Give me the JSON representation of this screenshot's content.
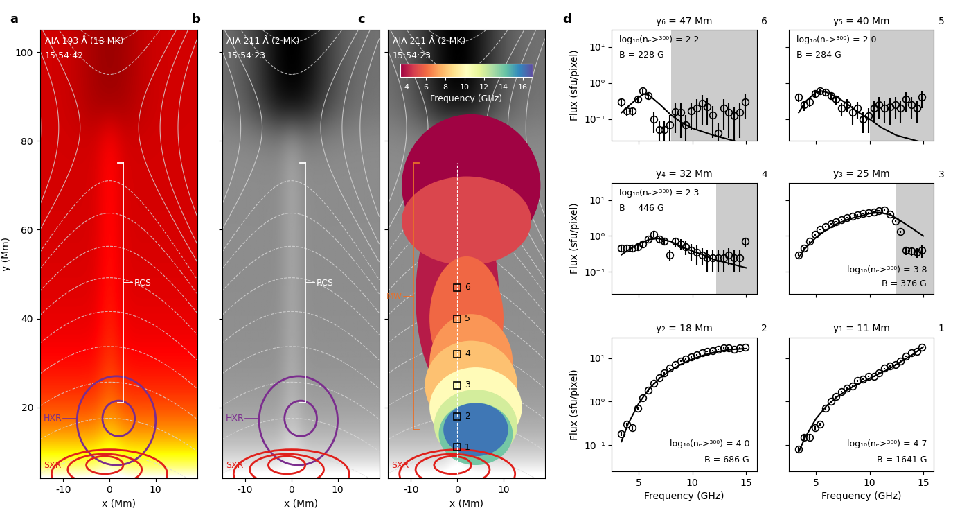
{
  "chart_data": [
    {
      "type": "image",
      "panel": "a",
      "channel": "AIA 193 Å (18 MK)",
      "time": "15:54:42",
      "color": "red",
      "xlabel": "x (Mm)",
      "ylabel": "y (Mm)",
      "xlim": [
        -15,
        19
      ],
      "ylim": [
        4,
        105
      ],
      "xticks": [
        -10,
        0,
        10
      ],
      "yticks": [
        20,
        40,
        60,
        80,
        100
      ],
      "brackets": [
        {
          "text": "RCS",
          "x": 3,
          "y": [
            21,
            75
          ],
          "color": "white"
        }
      ],
      "contours": [
        {
          "text": "HXR",
          "color": "#7b2d8e",
          "ellipses": [
            {
              "x": 2,
              "y": 17.5,
              "width": 7,
              "height": 8
            },
            {
              "x": 1.5,
              "y": 17,
              "width": 17,
              "height": 20
            }
          ]
        },
        {
          "text": "SXR",
          "color": "#e0201b",
          "ellipses": [
            {
              "x": -1,
              "y": 7,
              "width": 8,
              "height": 4
            },
            {
              "x": -1,
              "y": 6,
              "width": 16,
              "height": 7
            },
            {
              "x": 0,
              "y": 5,
              "width": 25,
              "height": 11
            }
          ]
        }
      ]
    },
    {
      "type": "image",
      "panel": "b",
      "channel": "AIA 211 Å (2 MK)",
      "time": "15:54:23",
      "color": "gray",
      "xlabel": "x (Mm)",
      "xlim": [
        -15,
        19
      ],
      "ylim": [
        4,
        105
      ],
      "tick_labels": "x",
      "xticks": [
        -10,
        0,
        10
      ],
      "yticks": [
        20,
        40,
        60,
        80,
        100
      ],
      "brackets": [
        {
          "text": "RCS",
          "x": 3,
          "y": [
            21,
            75
          ],
          "color": "white"
        }
      ],
      "contours": [
        {
          "text": "HXR",
          "color": "#7b2d8e",
          "ellipses": [
            {
              "x": 2,
              "y": 17.5,
              "width": 7,
              "height": 8
            },
            {
              "x": 1.5,
              "y": 17,
              "width": 17,
              "height": 20
            }
          ]
        },
        {
          "text": "SXR",
          "color": "#e0201b",
          "ellipses": [
            {
              "x": -1,
              "y": 7,
              "width": 8,
              "height": 4
            },
            {
              "x": -1,
              "y": 6,
              "width": 16,
              "height": 7
            },
            {
              "x": 0,
              "y": 5,
              "width": 25,
              "height": 11
            }
          ]
        }
      ]
    },
    {
      "type": "image",
      "panel": "c",
      "channel": "AIA 211 Å (2 MK)",
      "time": "15:54:23",
      "color": "gray",
      "xlabel": "x (Mm)",
      "xlim": [
        -15,
        19
      ],
      "ylim": [
        4,
        105
      ],
      "tick_labels": "x",
      "xticks": [
        -10,
        0,
        10
      ],
      "yticks": [
        20,
        40,
        60,
        80,
        100
      ],
      "brackets": [
        {
          "text": "MW",
          "x": -9.5,
          "y": [
            15,
            75
          ],
          "color": "#e8702a"
        }
      ],
      "contours": [
        {
          "text": "SXR",
          "color": "#e0201b",
          "ellipses": [
            {
              "x": -1,
              "y": 7,
              "width": 8,
              "height": 4
            },
            {
              "x": -1,
              "y": 6,
              "width": 16,
              "height": 7
            },
            {
              "x": 0,
              "y": 5,
              "width": 25,
              "height": 11
            }
          ]
        }
      ],
      "mw_sources": [
        {
          "frequency": 3.5,
          "x": 3,
          "y": 70,
          "width": 30,
          "height": 32
        },
        {
          "frequency": 4,
          "x": 0,
          "y": 45,
          "width": 18,
          "height": 45
        },
        {
          "frequency": 5,
          "x": 2,
          "y": 62,
          "width": 28,
          "height": 20
        },
        {
          "frequency": 6,
          "x": 2,
          "y": 40,
          "width": 16,
          "height": 28
        },
        {
          "frequency": 7,
          "x": 3,
          "y": 30,
          "width": 18,
          "height": 22
        },
        {
          "frequency": 8,
          "x": 3,
          "y": 25,
          "width": 20,
          "height": 20
        },
        {
          "frequency": 10,
          "x": 4,
          "y": 20,
          "width": 20,
          "height": 18
        },
        {
          "frequency": 12,
          "x": 4,
          "y": 16,
          "width": 18,
          "height": 16
        },
        {
          "frequency": 14,
          "x": 4,
          "y": 14,
          "width": 16,
          "height": 14
        },
        {
          "frequency": 16,
          "x": 4,
          "y": 15,
          "width": 14,
          "height": 12
        }
      ],
      "colorbar": {
        "label": "Frequency (GHz)",
        "lim": [
          3.4,
          17
        ],
        "ticks": [
          4,
          6,
          8,
          10,
          12,
          14,
          16
        ]
      },
      "marker_x": 0
    },
    {
      "type": "scatter",
      "title": "y₆ = 47 Mm",
      "y": 47,
      "label": "6",
      "ylabel": "Flux (sfu/pixel)",
      "tick_labels": "y",
      "log": "y",
      "xlim": [
        2.5,
        16
      ],
      "ylim": [
        0.025,
        30
      ],
      "xticks": [
        5,
        10,
        15
      ],
      "yticks": [
        {
          "value": 0.1,
          "label": "10⁻¹"
        },
        {
          "value": 1,
          "label": "10⁰"
        },
        {
          "value": 10,
          "label": "10¹"
        }
      ],
      "x": [
        3.4,
        3.9,
        4.4,
        4.9,
        5.4,
        5.9,
        6.4,
        6.9,
        7.4,
        7.9,
        8.4,
        8.9,
        9.4,
        9.9,
        10.4,
        10.9,
        11.4,
        11.9,
        12.4,
        12.9,
        13.4,
        13.9,
        14.4,
        14.9
      ],
      "values": [
        0.3,
        0.17,
        0.17,
        0.35,
        0.6,
        0.45,
        0.1,
        0.05,
        0.05,
        0.07,
        0.16,
        0.15,
        0.07,
        0.17,
        0.2,
        0.27,
        0.22,
        0.13,
        0.04,
        0.2,
        0.15,
        0.12,
        0.15,
        0.3
      ],
      "errors": [
        0.08,
        0.05,
        0.05,
        0.08,
        0.1,
        0.1,
        0.06,
        0.04,
        0.04,
        0.06,
        0.12,
        0.12,
        0.06,
        0.12,
        0.15,
        0.2,
        0.15,
        0.1,
        0.035,
        0.15,
        0.12,
        0.1,
        0.12,
        0.2
      ],
      "fit": {
        "x": [
          3.4,
          4,
          5,
          5.5,
          6,
          7,
          8,
          9,
          10,
          12,
          15
        ],
        "values": [
          0.15,
          0.22,
          0.4,
          0.5,
          0.45,
          0.25,
          0.13,
          0.08,
          0.055,
          0.035,
          0.02
        ]
      },
      "shaded_from": 8,
      "annotations": [
        "log₁₀(nₑ>³⁰⁰) = 2.2",
        "B = 228 G"
      ]
    },
    {
      "type": "scatter",
      "title": "y₅ = 40 Mm",
      "y": 40,
      "label": "5",
      "tick_labels": false,
      "log": "y",
      "xlim": [
        2.5,
        16
      ],
      "ylim": [
        0.025,
        30
      ],
      "xticks": [
        5,
        10,
        15
      ],
      "yticks": [
        {
          "value": 0.1,
          "label": "10⁻¹"
        },
        {
          "value": 1,
          "label": "10⁰"
        },
        {
          "value": 10,
          "label": "10¹"
        }
      ],
      "x": [
        3.4,
        3.9,
        4.4,
        4.9,
        5.4,
        5.9,
        6.4,
        6.9,
        7.4,
        7.9,
        8.4,
        8.9,
        9.4,
        9.9,
        10.4,
        10.9,
        11.4,
        11.9,
        12.4,
        12.9,
        13.4,
        13.9,
        14.4,
        14.9
      ],
      "values": [
        0.4,
        0.25,
        0.3,
        0.5,
        0.6,
        0.55,
        0.45,
        0.35,
        0.2,
        0.25,
        0.15,
        0.2,
        0.1,
        0.12,
        0.2,
        0.25,
        0.2,
        0.22,
        0.25,
        0.2,
        0.35,
        0.25,
        0.2,
        0.4
      ],
      "errors": [
        0.1,
        0.08,
        0.08,
        0.1,
        0.1,
        0.1,
        0.1,
        0.1,
        0.08,
        0.1,
        0.08,
        0.1,
        0.06,
        0.08,
        0.12,
        0.15,
        0.12,
        0.15,
        0.15,
        0.12,
        0.2,
        0.15,
        0.12,
        0.2
      ],
      "fit": {
        "x": [
          3.4,
          4,
          5,
          5.5,
          6,
          7,
          8,
          9,
          10,
          11,
          12.5,
          15
        ],
        "values": [
          0.15,
          0.3,
          0.55,
          0.6,
          0.55,
          0.4,
          0.25,
          0.15,
          0.1,
          0.06,
          0.035,
          0.022
        ]
      },
      "shaded_from": 10,
      "annotations": [
        "log₁₀(nₑ>³⁰⁰) = 2.0",
        "B = 284 G"
      ]
    },
    {
      "type": "scatter",
      "title": "y₄ = 32 Mm",
      "y": 32,
      "label": "4",
      "ylabel": "Flux (sfu/pixel)",
      "tick_labels": "y",
      "log": "y",
      "xlim": [
        2.5,
        16
      ],
      "ylim": [
        0.025,
        30
      ],
      "xticks": [
        5,
        10,
        15
      ],
      "yticks": [
        {
          "value": 0.1,
          "label": "10⁻¹"
        },
        {
          "value": 1,
          "label": "10⁰"
        },
        {
          "value": 10,
          "label": "10¹"
        }
      ],
      "x": [
        3.4,
        3.9,
        4.4,
        4.9,
        5.4,
        5.9,
        6.4,
        6.9,
        7.4,
        7.9,
        8.4,
        8.9,
        9.4,
        9.9,
        10.4,
        10.9,
        11.4,
        11.9,
        12.4,
        12.9,
        13.4,
        13.9,
        14.4,
        14.9
      ],
      "values": [
        0.45,
        0.45,
        0.45,
        0.5,
        0.6,
        0.8,
        1.1,
        0.8,
        0.7,
        0.3,
        0.7,
        0.6,
        0.5,
        0.4,
        0.35,
        0.3,
        0.25,
        0.25,
        0.25,
        0.25,
        0.3,
        0.25,
        0.25,
        0.7
      ],
      "errors": [
        0.1,
        0.1,
        0.1,
        0.1,
        0.1,
        0.12,
        0.15,
        0.15,
        0.15,
        0.1,
        0.2,
        0.2,
        0.2,
        0.2,
        0.2,
        0.15,
        0.15,
        0.15,
        0.15,
        0.15,
        0.15,
        0.15,
        0.15,
        0.2
      ],
      "fit": {
        "x": [
          3.4,
          4,
          5,
          6,
          6.8,
          8,
          9,
          10,
          11,
          12,
          13.5,
          15
        ],
        "values": [
          0.3,
          0.4,
          0.6,
          0.8,
          0.85,
          0.7,
          0.5,
          0.38,
          0.3,
          0.22,
          0.17,
          0.13
        ]
      },
      "shaded_from": 12.2,
      "annotations": [
        "log₁₀(nₑ>³⁰⁰) = 2.3",
        "B = 446 G"
      ]
    },
    {
      "type": "scatter",
      "title": "y₃ = 25 Mm",
      "y": 25,
      "label": "3",
      "tick_labels": false,
      "log": "y",
      "xlim": [
        2.5,
        16
      ],
      "ylim": [
        0.025,
        30
      ],
      "xticks": [
        5,
        10,
        15
      ],
      "yticks": [
        {
          "value": 0.1,
          "label": "10⁻¹"
        },
        {
          "value": 1,
          "label": "10⁰"
        },
        {
          "value": 10,
          "label": "10¹"
        }
      ],
      "x": [
        3.4,
        3.9,
        4.4,
        4.9,
        5.4,
        5.9,
        6.4,
        6.9,
        7.4,
        7.9,
        8.4,
        8.9,
        9.4,
        9.9,
        10.4,
        10.9,
        11.4,
        11.9,
        12.4,
        12.9,
        13.4,
        13.9,
        14.4,
        14.9
      ],
      "values": [
        0.3,
        0.45,
        0.7,
        1.1,
        1.5,
        1.8,
        2.2,
        2.5,
        2.8,
        3.2,
        3.6,
        3.9,
        4.2,
        4.5,
        4.7,
        5.0,
        5.2,
        4.0,
        2.6,
        1.3,
        0.4,
        0.38,
        0.35,
        0.4
      ],
      "errors": [
        0.03,
        0.04,
        0.05,
        0.07,
        0.08,
        0.09,
        0.1,
        0.12,
        0.13,
        0.15,
        0.15,
        0.17,
        0.18,
        0.2,
        0.2,
        0.2,
        0.2,
        0.2,
        0.15,
        0.1,
        0.1,
        0.1,
        0.1,
        0.15
      ],
      "fit": {
        "x": [
          3.4,
          4,
          5,
          6,
          7,
          8,
          9,
          10,
          11,
          12,
          13,
          14,
          15
        ],
        "values": [
          0.25,
          0.45,
          0.9,
          1.5,
          2.2,
          2.9,
          3.5,
          4.2,
          4.5,
          3.8,
          2.5,
          1.6,
          1.0
        ]
      },
      "shaded_from": 12.5,
      "annotations": [
        "log₁₀(nₑ>³⁰⁰) = 3.8",
        "B = 376 G"
      ]
    },
    {
      "type": "scatter",
      "title": "y₂ = 18 Mm",
      "y": 18,
      "label": "2",
      "ylabel": "Flux (sfu/pixel)",
      "xlabel": "Frequency (GHz)",
      "log": "y",
      "xlim": [
        2.5,
        16
      ],
      "ylim": [
        0.025,
        30
      ],
      "xticks": [
        5,
        10,
        15
      ],
      "yticks": [
        {
          "value": 0.1,
          "label": "10⁻¹"
        },
        {
          "value": 1,
          "label": "10⁰"
        },
        {
          "value": 10,
          "label": "10¹"
        }
      ],
      "x": [
        3.4,
        3.9,
        4.4,
        4.9,
        5.4,
        5.9,
        6.4,
        6.9,
        7.4,
        7.9,
        8.4,
        8.9,
        9.4,
        9.9,
        10.4,
        10.9,
        11.4,
        11.9,
        12.4,
        12.9,
        13.4,
        13.9,
        14.4,
        14.9
      ],
      "values": [
        0.18,
        0.3,
        0.25,
        0.7,
        1.2,
        1.8,
        2.6,
        3.5,
        4.5,
        5.8,
        7,
        8.5,
        9.5,
        10.5,
        12,
        13,
        14,
        15,
        16,
        17,
        17,
        16,
        17,
        18
      ],
      "errors": [
        0.02,
        0.03,
        0.03,
        0.05,
        0.06,
        0.08,
        0.1,
        0.12,
        0.15,
        0.2,
        0.25,
        0.3,
        0.3,
        0.35,
        0.4,
        0.4,
        0.45,
        0.45,
        0.5,
        0.5,
        0.5,
        0.5,
        0.5,
        0.5
      ],
      "fit": {
        "x": [
          3.4,
          4,
          5,
          6,
          7,
          8,
          9,
          10,
          11,
          12,
          13,
          14,
          15
        ],
        "values": [
          0.12,
          0.3,
          0.9,
          2,
          3.5,
          5.3,
          7.3,
          9.5,
          11.5,
          13.5,
          15,
          16,
          16.5
        ]
      },
      "annotations": [
        "log₁₀(nₑ>³⁰⁰) = 4.0",
        "B = 686 G"
      ]
    },
    {
      "type": "scatter",
      "title": "y₁ = 11 Mm",
      "y": 11,
      "label": "1",
      "xlabel": "Frequency (GHz)",
      "tick_labels": "x",
      "log": "y",
      "xlim": [
        2.5,
        16
      ],
      "ylim": [
        0.025,
        30
      ],
      "xticks": [
        5,
        10,
        15
      ],
      "yticks": [
        {
          "value": 0.1,
          "label": "10⁻¹"
        },
        {
          "value": 1,
          "label": "10⁰"
        },
        {
          "value": 10,
          "label": "10¹"
        }
      ],
      "x": [
        3.4,
        3.9,
        4.4,
        4.9,
        5.4,
        5.9,
        6.4,
        6.9,
        7.4,
        7.9,
        8.4,
        8.9,
        9.4,
        9.9,
        10.4,
        10.9,
        11.4,
        11.9,
        12.4,
        12.9,
        13.4,
        13.9,
        14.4,
        14.9
      ],
      "values": [
        0.08,
        0.15,
        0.15,
        0.25,
        0.3,
        0.7,
        1.0,
        1.3,
        1.7,
        2.0,
        2.3,
        3.0,
        3.3,
        3.8,
        3.8,
        4.5,
        5.8,
        6.6,
        7.2,
        8.5,
        11,
        13,
        14,
        18
      ],
      "errors": [
        0.01,
        0.02,
        0.02,
        0.03,
        0.03,
        0.05,
        0.06,
        0.07,
        0.08,
        0.1,
        0.1,
        0.12,
        0.13,
        0.15,
        0.15,
        0.18,
        0.2,
        0.25,
        0.25,
        0.3,
        0.4,
        0.45,
        0.5,
        0.6
      ],
      "fit": {
        "x": [
          3.4,
          4,
          5,
          6,
          7,
          8,
          9,
          10,
          11,
          12,
          13,
          14,
          15
        ],
        "values": [
          0.07,
          0.15,
          0.4,
          0.8,
          1.3,
          1.9,
          2.6,
          3.4,
          4.5,
          6,
          8.5,
          12,
          18
        ]
      },
      "annotations": [
        "log₁₀(nₑ>³⁰⁰) = 4.7",
        "B = 1641 G"
      ]
    }
  ],
  "labels": {
    "spectra_panel": "d"
  }
}
